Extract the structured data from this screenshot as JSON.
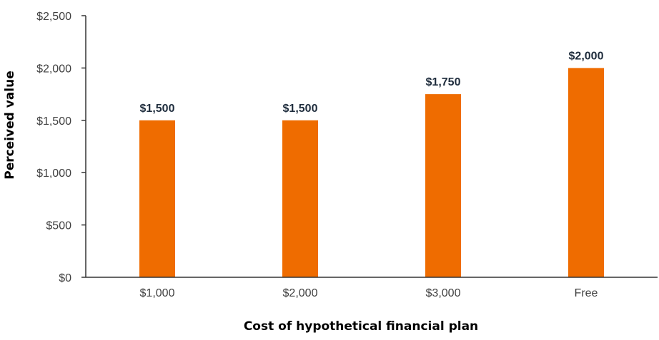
{
  "chart_data": {
    "type": "bar",
    "title": "",
    "xlabel": "Cost of hypothetical financial plan",
    "ylabel": "Perceived value",
    "categories": [
      "$1,000",
      "$2,000",
      "$3,000",
      "Free"
    ],
    "values": [
      1500,
      1500,
      1750,
      2000
    ],
    "value_labels": [
      "$1,500",
      "$1,500",
      "$1,750",
      "$2,000"
    ],
    "ylim": [
      0,
      2500
    ],
    "yticks": [
      0,
      500,
      1000,
      1500,
      2000,
      2500
    ],
    "ytick_labels": [
      "$0",
      "$500",
      "$1,000",
      "$1,500",
      "$2,000",
      "$2,500"
    ],
    "bar_color": "#ef6c00",
    "grid": false,
    "legend": "none"
  }
}
